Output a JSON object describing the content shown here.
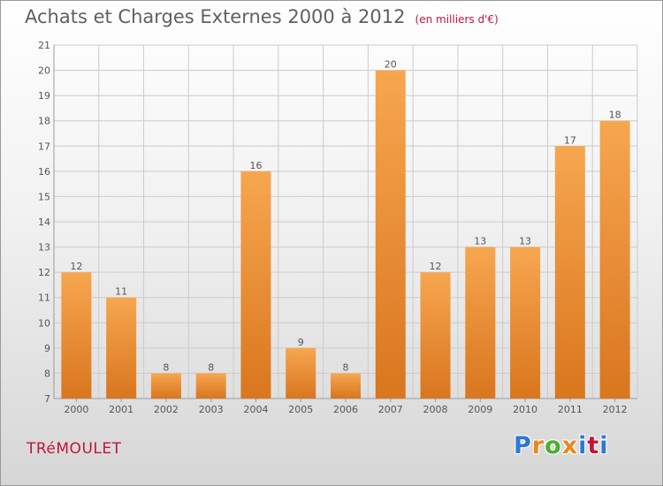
{
  "chart_data": {
    "type": "bar",
    "title": "Achats et Charges Externes 2000 à 2012",
    "subtitle": "(en milliers d'€)",
    "categories": [
      "2000",
      "2001",
      "2002",
      "2003",
      "2004",
      "2005",
      "2006",
      "2007",
      "2008",
      "2009",
      "2010",
      "2011",
      "2012"
    ],
    "values": [
      12,
      11,
      8,
      8,
      16,
      9,
      8,
      20,
      12,
      13,
      13,
      17,
      18
    ],
    "ylim": [
      7,
      21
    ],
    "yticks": [
      7,
      8,
      9,
      10,
      11,
      12,
      13,
      14,
      15,
      16,
      17,
      18,
      19,
      20,
      21
    ],
    "grid": true,
    "bar_color_top": "#f7a650",
    "bar_color_bottom": "#d9761e",
    "grid_color": "#cccccc"
  },
  "footer": {
    "commune": "TRéMOULET",
    "brand": "Proxiti",
    "brand_colors": [
      "#2f77d4",
      "#e8891e",
      "#4cae32",
      "#e8891e",
      "#2f77d4",
      "#c0143c",
      "#2f77d4"
    ]
  }
}
